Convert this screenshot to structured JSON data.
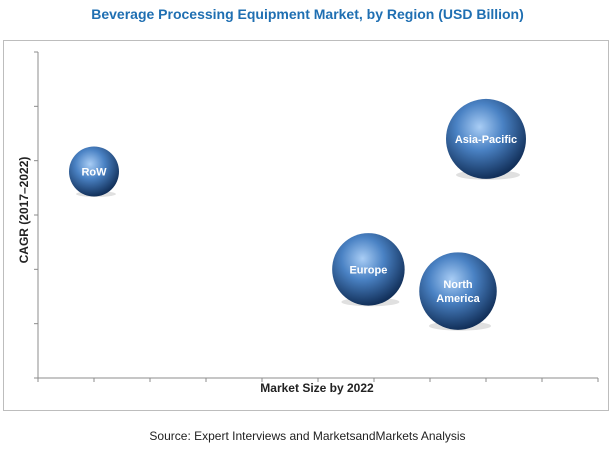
{
  "chart_data": {
    "type": "scatter",
    "title": "Beverage Processing Equipment Market, by Region (USD Billion)",
    "xlabel": "Market Size by 2022",
    "ylabel": "CAGR (2017–2022)",
    "xlim": [
      0,
      10
    ],
    "ylim": [
      0,
      6
    ],
    "grid": false,
    "points": [
      {
        "label": "RoW",
        "x": 1.0,
        "y": 3.8,
        "size": 1.0
      },
      {
        "label": "Asia-Pacific",
        "x": 8.0,
        "y": 4.4,
        "size": 1.6
      },
      {
        "label": "Europe",
        "x": 5.9,
        "y": 2.0,
        "size": 1.45
      },
      {
        "label": "North America",
        "x": 7.5,
        "y": 1.6,
        "size": 1.55
      }
    ],
    "colors": {
      "bubble_center": "#8fb8e8",
      "bubble_mid": "#3f74b5",
      "bubble_edge": "#14335f",
      "title": "#1f6fb2"
    }
  },
  "source": "Source: Expert Interviews and MarketsandMarkets Analysis"
}
